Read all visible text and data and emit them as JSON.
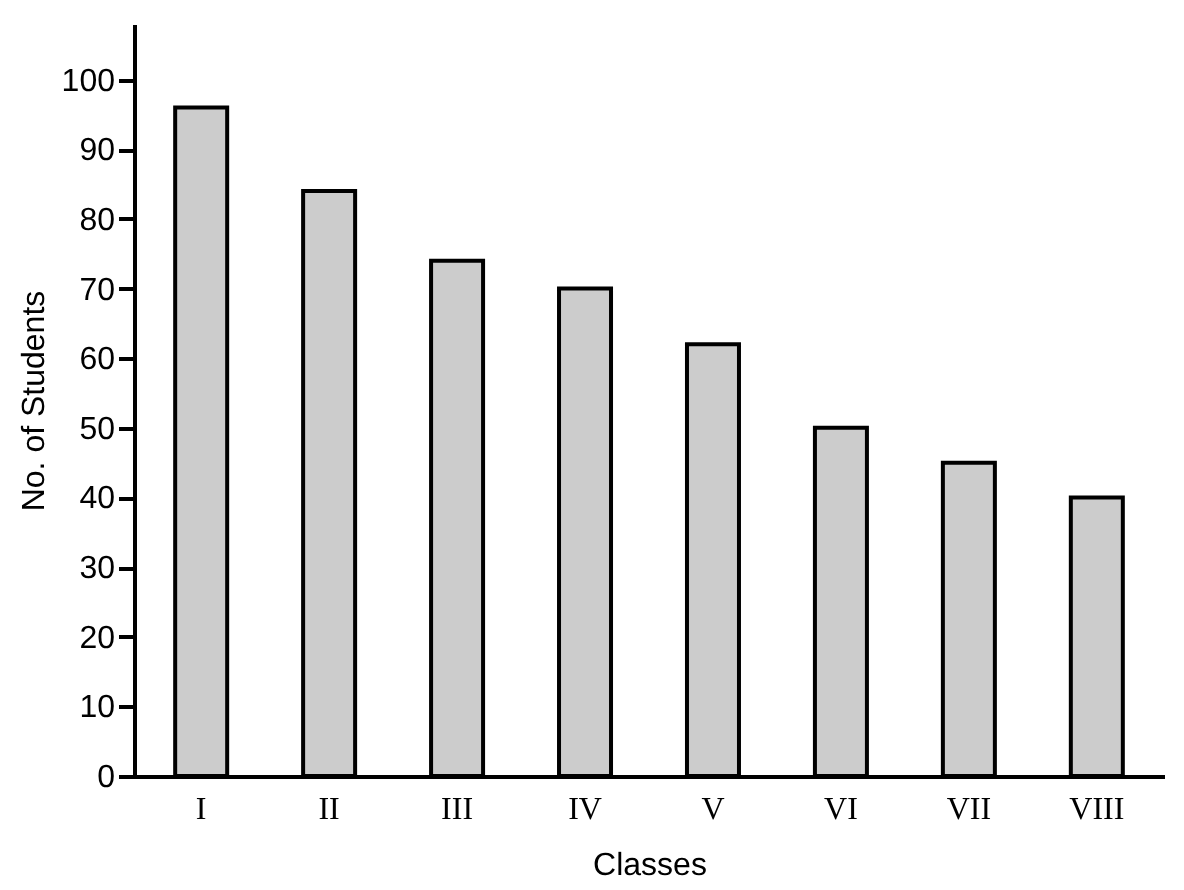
{
  "chart_data": {
    "type": "bar",
    "xlabel": "Classes",
    "ylabel": "No. of Students",
    "categories": [
      "I",
      "II",
      "III",
      "IV",
      "V",
      "VI",
      "VII",
      "VIII"
    ],
    "values": [
      96,
      84,
      74,
      70,
      62,
      50,
      45,
      40
    ],
    "color": "#cccccc",
    "ylim": [
      0,
      108
    ],
    "yticks": [
      0,
      10,
      20,
      30,
      40,
      50,
      60,
      70,
      80,
      90,
      100
    ],
    "grid": false
  }
}
